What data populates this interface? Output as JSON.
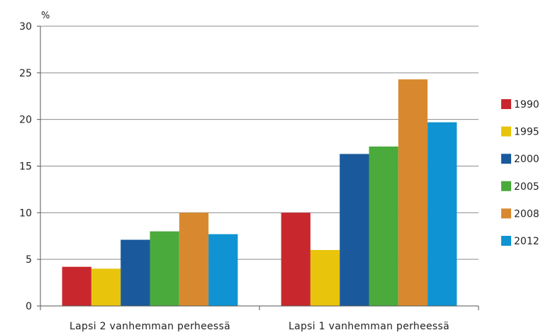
{
  "chart_data": {
    "type": "bar",
    "ylabel": "%",
    "ylim": [
      0,
      30
    ],
    "yticks": [
      0,
      5,
      10,
      15,
      20,
      25,
      30
    ],
    "grid": true,
    "legend_position": "right",
    "categories": [
      "Lapsi 2 vanhemman perheessä",
      "Lapsi 1 vanhemman perheessä"
    ],
    "series": [
      {
        "name": "1990",
        "color": "#c8282d",
        "values": [
          4.2,
          10.0
        ]
      },
      {
        "name": "1995",
        "color": "#e8c40c",
        "values": [
          4.0,
          6.0
        ]
      },
      {
        "name": "2000",
        "color": "#1a5a9c",
        "values": [
          7.1,
          16.3
        ]
      },
      {
        "name": "2005",
        "color": "#4aaa3c",
        "values": [
          8.0,
          17.1
        ]
      },
      {
        "name": "2008",
        "color": "#d8892f",
        "values": [
          10.0,
          24.3
        ]
      },
      {
        "name": "2012",
        "color": "#0f93d2",
        "values": [
          7.7,
          19.7
        ]
      }
    ]
  }
}
